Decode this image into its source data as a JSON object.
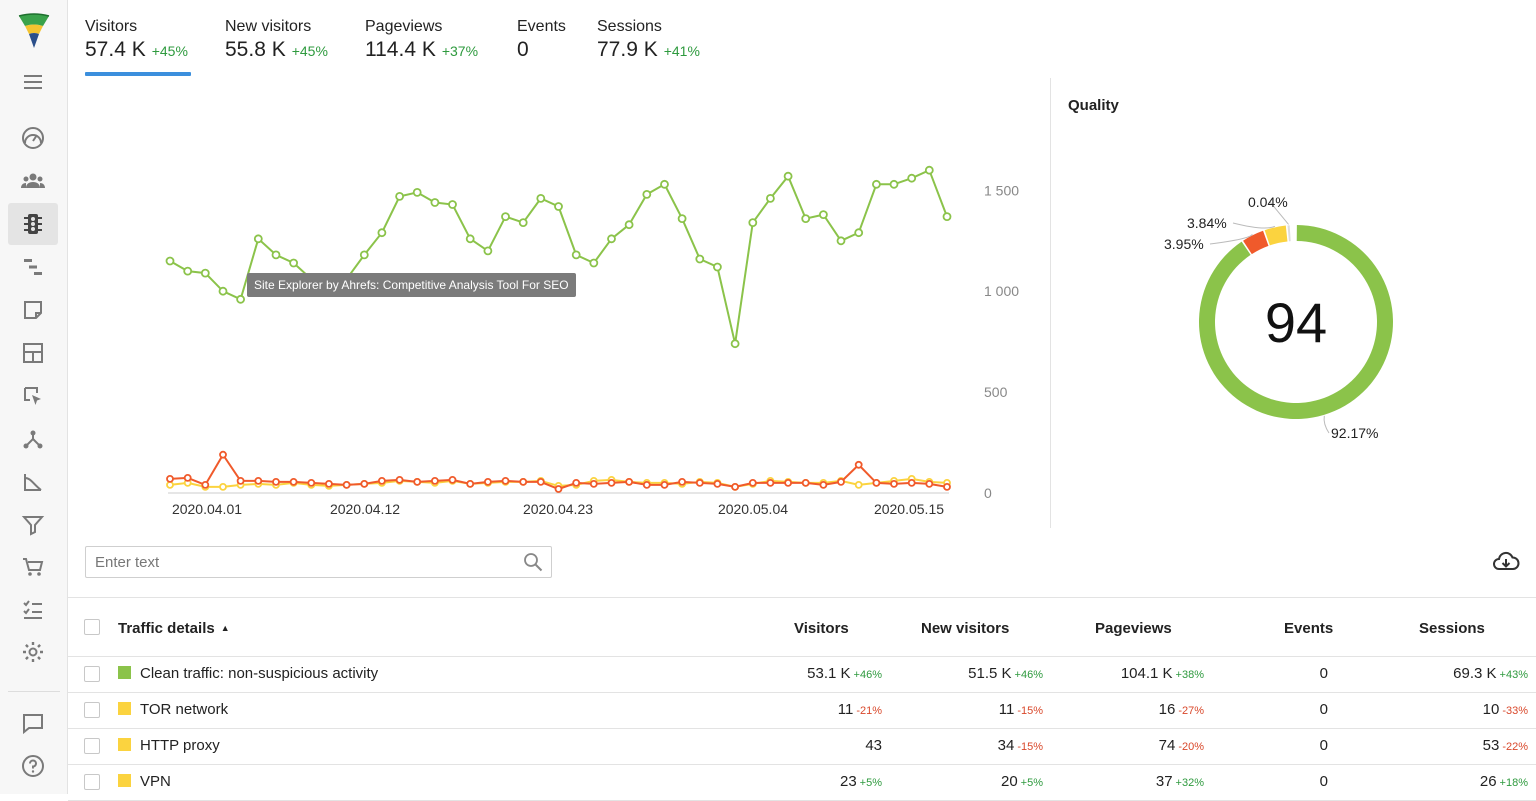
{
  "metrics": [
    {
      "label": "Visitors",
      "value": "57.4 K",
      "change": "+45%"
    },
    {
      "label": "New visitors",
      "value": "55.8 K",
      "change": "+45%"
    },
    {
      "label": "Pageviews",
      "value": "114.4 K",
      "change": "+37%"
    },
    {
      "label": "Events",
      "value": "0",
      "change": ""
    },
    {
      "label": "Sessions",
      "value": "77.9 K",
      "change": "+41%"
    }
  ],
  "tooltip": "Site Explorer by Ahrefs: Competitive Analysis Tool For SEO",
  "quality": {
    "title": "Quality",
    "score": "94",
    "segments": [
      {
        "label": "92.17%",
        "value": 92.17,
        "color": "#8bc34a"
      },
      {
        "label": "3.95%",
        "value": 3.95,
        "color": "#f05a2b"
      },
      {
        "label": "3.84%",
        "value": 3.84,
        "color": "#fbd33f"
      },
      {
        "label": "0.04%",
        "value": 0.04,
        "color": "#dddddd"
      }
    ]
  },
  "chart_data": {
    "type": "line",
    "x_ticks": [
      "2020.04.01",
      "2020.04.12",
      "2020.04.23",
      "2020.05.04",
      "2020.05.15"
    ],
    "y_ticks": [
      "0",
      "500",
      "1 000",
      "1 500"
    ],
    "ylim": [
      0,
      1700
    ],
    "x_start": "2020.03.30",
    "series": [
      {
        "name": "",
        "color": "#8bc34a",
        "values": [
          1150,
          1100,
          1090,
          1000,
          960,
          1260,
          1180,
          1140,
          1060,
          1050,
          1060,
          1180,
          1290,
          1470,
          1490,
          1440,
          1430,
          1260,
          1200,
          1370,
          1340,
          1460,
          1420,
          1180,
          1140,
          1260,
          1330,
          1480,
          1530,
          1360,
          1160,
          1120,
          740,
          1340,
          1460,
          1570,
          1360,
          1380,
          1250,
          1290,
          1530,
          1530,
          1560,
          1600,
          1370
        ]
      },
      {
        "name": "",
        "color": "#fbd33f",
        "values": [
          40,
          50,
          30,
          30,
          40,
          45,
          40,
          50,
          40,
          35,
          40,
          45,
          50,
          60,
          55,
          50,
          60,
          45,
          50,
          55,
          55,
          60,
          35,
          40,
          60,
          65,
          55,
          50,
          50,
          45,
          55,
          50,
          30,
          45,
          60,
          55,
          50,
          50,
          60,
          40,
          50,
          60,
          70,
          55,
          50
        ]
      },
      {
        "name": "",
        "color": "#f05a2b",
        "values": [
          70,
          75,
          40,
          190,
          60,
          60,
          55,
          55,
          50,
          45,
          40,
          45,
          60,
          65,
          55,
          60,
          65,
          45,
          55,
          60,
          55,
          55,
          20,
          50,
          45,
          50,
          55,
          40,
          40,
          55,
          50,
          45,
          30,
          50,
          50,
          50,
          50,
          40,
          55,
          140,
          50,
          45,
          50,
          45,
          30
        ]
      }
    ]
  },
  "search": {
    "placeholder": "Enter text"
  },
  "table": {
    "headers": [
      "Traffic details",
      "Visitors",
      "New visitors",
      "Pageviews",
      "Events",
      "Sessions"
    ],
    "rows": [
      {
        "name": "Clean traffic: non-suspicious activity",
        "color": "#8bc34a",
        "visitors": "53.1 K",
        "visitors_chg": "+46%",
        "new_visitors": "51.5 K",
        "new_visitors_chg": "+46%",
        "pageviews": "104.1 K",
        "pageviews_chg": "+38%",
        "events": "0",
        "sessions": "69.3 K",
        "sessions_chg": "+43%"
      },
      {
        "name": "TOR network",
        "color": "#fbd33f",
        "visitors": "11",
        "visitors_chg": "-21%",
        "new_visitors": "11",
        "new_visitors_chg": "-15%",
        "pageviews": "16",
        "pageviews_chg": "-27%",
        "events": "0",
        "sessions": "10",
        "sessions_chg": "-33%"
      },
      {
        "name": "HTTP proxy",
        "color": "#fbd33f",
        "visitors": "43",
        "visitors_chg": "",
        "new_visitors": "34",
        "new_visitors_chg": "-15%",
        "pageviews": "74",
        "pageviews_chg": "-20%",
        "events": "0",
        "sessions": "53",
        "sessions_chg": "-22%"
      },
      {
        "name": "VPN",
        "color": "#fbd33f",
        "visitors": "23",
        "visitors_chg": "+5%",
        "new_visitors": "20",
        "new_visitors_chg": "+5%",
        "pageviews": "37",
        "pageviews_chg": "+32%",
        "events": "0",
        "sessions": "26",
        "sessions_chg": "+18%"
      }
    ]
  },
  "sidebar_icons": [
    "menu-icon",
    "dashboard-icon",
    "users-icon",
    "traffic-light-icon",
    "gantt-icon",
    "note-icon",
    "layout-icon",
    "cursor-icon",
    "network-icon",
    "graph-icon",
    "filter-icon",
    "cart-icon",
    "checklist-icon",
    "gear-icon",
    "chat-icon",
    "help-icon"
  ]
}
